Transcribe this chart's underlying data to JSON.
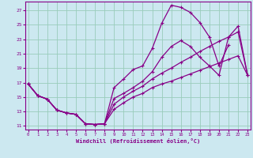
{
  "xlabel": "Windchill (Refroidissement éolien,°C)",
  "xlim": [
    -0.3,
    23.3
  ],
  "ylim": [
    10.5,
    28.2
  ],
  "yticks": [
    11,
    13,
    15,
    17,
    19,
    21,
    23,
    25,
    27
  ],
  "xticks": [
    0,
    1,
    2,
    3,
    4,
    5,
    6,
    7,
    8,
    9,
    10,
    11,
    12,
    13,
    14,
    15,
    16,
    17,
    18,
    19,
    20,
    21,
    22,
    23
  ],
  "bg_color": "#cce8f0",
  "grid_color": "#99ccbb",
  "line_color": "#880088",
  "curve1_x": [
    0,
    1,
    2,
    3,
    4,
    5,
    6,
    7,
    8,
    9,
    10,
    11,
    12,
    13,
    14,
    15,
    16,
    17,
    18,
    19,
    20,
    21
  ],
  "curve1_y": [
    16.8,
    15.2,
    14.7,
    13.2,
    12.8,
    12.6,
    11.3,
    11.2,
    11.3,
    16.3,
    17.5,
    18.8,
    19.3,
    21.7,
    25.2,
    27.7,
    27.4,
    26.7,
    25.3,
    23.3,
    19.3,
    22.2
  ],
  "curve2_x": [
    0,
    1,
    2,
    3,
    4,
    5,
    6,
    7,
    8,
    9,
    10,
    11,
    12,
    13,
    14,
    15,
    16,
    17,
    18,
    19,
    20,
    21,
    22,
    23
  ],
  "curve2_y": [
    16.8,
    15.2,
    14.7,
    13.2,
    12.8,
    12.6,
    11.3,
    11.2,
    11.3,
    14.8,
    15.5,
    16.3,
    17.2,
    18.5,
    20.5,
    22.0,
    22.8,
    22.0,
    20.5,
    19.3,
    18.0,
    23.3,
    24.8,
    18.0
  ],
  "curve3_x": [
    0,
    1,
    2,
    3,
    4,
    5,
    6,
    7,
    8,
    9,
    10,
    11,
    12,
    13,
    14,
    15,
    16,
    17,
    18,
    19,
    20,
    21,
    22,
    23
  ],
  "curve3_y": [
    16.8,
    15.2,
    14.7,
    13.2,
    12.8,
    12.6,
    11.3,
    11.2,
    11.3,
    14.0,
    15.0,
    15.8,
    16.5,
    17.5,
    18.3,
    19.0,
    19.8,
    20.5,
    21.3,
    22.0,
    22.7,
    23.3,
    24.0,
    18.0
  ],
  "curve4_x": [
    0,
    1,
    2,
    3,
    4,
    5,
    6,
    7,
    8,
    9,
    10,
    11,
    12,
    13,
    14,
    15,
    16,
    17,
    18,
    19,
    20,
    21,
    22,
    23
  ],
  "curve4_y": [
    16.8,
    15.2,
    14.7,
    13.2,
    12.8,
    12.6,
    11.3,
    11.2,
    11.3,
    13.3,
    14.2,
    15.0,
    15.5,
    16.3,
    16.8,
    17.2,
    17.7,
    18.2,
    18.7,
    19.2,
    19.7,
    20.2,
    20.7,
    18.0
  ]
}
